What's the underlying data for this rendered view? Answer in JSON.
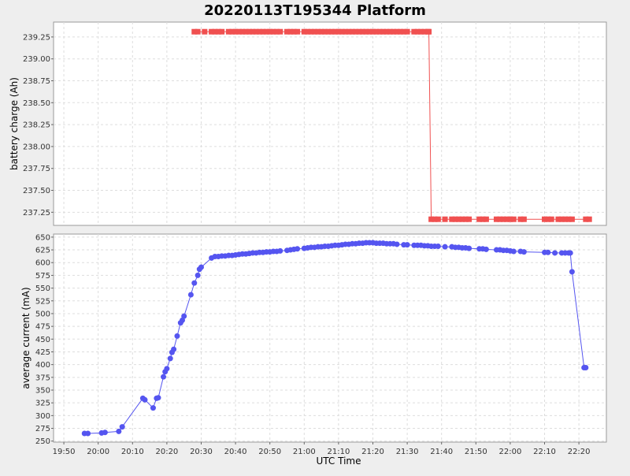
{
  "chart_data": {
    "type": "line",
    "title": "20220113T195344 Platform",
    "xlabel": "UTC Time",
    "x_ticks": [
      "19:50",
      "20:00",
      "20:10",
      "20:20",
      "20:30",
      "20:40",
      "20:50",
      "21:00",
      "21:10",
      "21:20",
      "21:30",
      "21:40",
      "21:50",
      "22:00",
      "22:10",
      "22:20"
    ],
    "xlim": [
      "19:47",
      "22:28"
    ],
    "grid": true,
    "colors": {
      "battery": "#f05050",
      "current": "#5555f0",
      "plot_bg": "#ffffff",
      "page_bg": "#eeeeee",
      "grid": "#dddddd"
    },
    "panels": [
      {
        "name": "battery",
        "ylabel": "battery charge (Ah)",
        "ylim": [
          237.1,
          239.42
        ],
        "y_ticks": [
          "239.25",
          "239.00",
          "238.75",
          "238.50",
          "238.25",
          "238.00",
          "237.75",
          "237.50",
          "237.25"
        ],
        "series": [
          {
            "marker": "square",
            "x": [
              "20:28",
              "20:29",
              "20:31",
              "20:33",
              "20:34",
              "20:35",
              "20:36",
              "20:38",
              "20:39",
              "20:40",
              "20:41",
              "20:42",
              "20:43",
              "20:44",
              "20:45",
              "20:46",
              "20:47",
              "20:48",
              "20:49",
              "20:50",
              "20:51",
              "20:52",
              "20:53",
              "20:55",
              "20:56",
              "20:57",
              "20:58",
              "21:00",
              "21:01",
              "21:02",
              "21:03",
              "21:04",
              "21:05",
              "21:06",
              "21:07",
              "21:08",
              "21:09",
              "21:10",
              "21:11",
              "21:12",
              "21:13",
              "21:14",
              "21:15",
              "21:16",
              "21:17",
              "21:18",
              "21:19",
              "21:20",
              "21:21",
              "21:22",
              "21:23",
              "21:24",
              "21:25",
              "21:26",
              "21:27",
              "21:28",
              "21:29",
              "21:30",
              "21:32",
              "21:33",
              "21:34",
              "21:35",
              "21:36",
              "21:36.3",
              "21:37",
              "21:38",
              "21:39",
              "21:41",
              "21:43",
              "21:44",
              "21:45",
              "21:46",
              "21:47",
              "21:48",
              "21:51",
              "21:52",
              "21:53",
              "21:56",
              "21:57",
              "21:58",
              "21:59",
              "22:00",
              "22:01",
              "22:03",
              "22:04",
              "22:10",
              "22:11",
              "22:12",
              "22:14",
              "22:15",
              "22:16",
              "22:17",
              "22:18",
              "22:22",
              "22:23"
            ],
            "y": [
              239.31,
              239.31,
              239.31,
              239.31,
              239.31,
              239.31,
              239.31,
              239.31,
              239.31,
              239.31,
              239.31,
              239.31,
              239.31,
              239.31,
              239.31,
              239.31,
              239.31,
              239.31,
              239.31,
              239.31,
              239.31,
              239.31,
              239.31,
              239.31,
              239.31,
              239.31,
              239.31,
              239.31,
              239.31,
              239.31,
              239.31,
              239.31,
              239.31,
              239.31,
              239.31,
              239.31,
              239.31,
              239.31,
              239.31,
              239.31,
              239.31,
              239.31,
              239.31,
              239.31,
              239.31,
              239.31,
              239.31,
              239.31,
              239.31,
              239.31,
              239.31,
              239.31,
              239.31,
              239.31,
              239.31,
              239.31,
              239.31,
              239.31,
              239.31,
              239.31,
              239.31,
              239.31,
              239.31,
              239.31,
              237.17,
              237.17,
              237.17,
              237.17,
              237.17,
              237.17,
              237.17,
              237.17,
              237.17,
              237.17,
              237.17,
              237.17,
              237.17,
              237.17,
              237.17,
              237.17,
              237.17,
              237.17,
              237.17,
              237.17,
              237.17,
              237.17,
              237.17,
              237.17,
              237.17,
              237.17,
              237.17,
              237.17,
              237.17,
              237.17,
              237.17
            ]
          }
        ]
      },
      {
        "name": "current",
        "ylabel": "average current (mA)",
        "ylim": [
          248,
          656
        ],
        "y_ticks": [
          "650",
          "625",
          "600",
          "575",
          "550",
          "525",
          "500",
          "475",
          "450",
          "425",
          "400",
          "375",
          "350",
          "325",
          "300",
          "275",
          "250"
        ],
        "series": [
          {
            "marker": "circle",
            "x": [
              "19:56",
              "19:57",
              "20:01",
              "20:02",
              "20:06",
              "20:07",
              "20:13",
              "20:13.6",
              "20:16",
              "20:17",
              "20:17.5",
              "20:19",
              "20:19.5",
              "20:20",
              "20:21",
              "20:21.5",
              "20:22",
              "20:23",
              "20:24",
              "20:24.5",
              "20:25",
              "20:27",
              "20:28",
              "20:29",
              "20:29.5",
              "20:30",
              "20:33",
              "20:34",
              "20:35",
              "20:36",
              "20:37",
              "20:38",
              "20:39",
              "20:40",
              "20:41",
              "20:42",
              "20:43",
              "20:44",
              "20:45",
              "20:46",
              "20:47",
              "20:48",
              "20:49",
              "20:50",
              "20:51",
              "20:52",
              "20:53",
              "20:55",
              "20:56",
              "20:57",
              "20:58",
              "21:00",
              "21:01",
              "21:02",
              "21:03",
              "21:04",
              "21:05",
              "21:06",
              "21:07",
              "21:08",
              "21:09",
              "21:10",
              "21:11",
              "21:12",
              "21:13",
              "21:14",
              "21:15",
              "21:16",
              "21:17",
              "21:18",
              "21:19",
              "21:20",
              "21:21",
              "21:22",
              "21:23",
              "21:24",
              "21:25",
              "21:26",
              "21:27",
              "21:29",
              "21:30",
              "21:32",
              "21:33",
              "21:34",
              "21:35",
              "21:36",
              "21:37",
              "21:38",
              "21:39",
              "21:41",
              "21:43",
              "21:44",
              "21:45",
              "21:46",
              "21:47",
              "21:48",
              "21:51",
              "21:52",
              "21:53",
              "21:56",
              "21:57",
              "21:58",
              "21:59",
              "22:00",
              "22:01",
              "22:03",
              "22:04",
              "22:10",
              "22:11",
              "22:13",
              "22:15",
              "22:16",
              "22:17",
              "22:17.5",
              "22:18",
              "22:21.5",
              "22:22"
            ],
            "y": [
              265,
              265,
              266,
              267,
              269,
              278,
              334,
              331,
              315,
              334,
              335,
              376,
              386,
              392,
              412,
              424,
              430,
              456,
              482,
              487,
              495,
              537,
              560,
              575,
              587,
              591,
              609,
              612,
              612,
              613,
              613,
              614,
              614,
              615,
              616,
              617,
              617,
              618,
              619,
              619,
              620,
              620,
              621,
              621,
              622,
              622,
              623,
              624,
              625,
              626,
              627,
              628,
              629,
              630,
              630,
              631,
              631,
              632,
              632,
              633,
              634,
              634,
              635,
              636,
              636,
              637,
              637,
              638,
              638,
              639,
              639,
              639,
              638,
              638,
              638,
              637,
              637,
              637,
              636,
              635,
              635,
              634,
              634,
              634,
              633,
              633,
              632,
              632,
              632,
              631,
              631,
              630,
              630,
              629,
              629,
              628,
              627,
              627,
              626,
              625,
              625,
              624,
              624,
              623,
              622,
              622,
              621,
              620,
              620,
              619,
              619,
              619,
              619,
              619,
              582,
              394,
              394
            ]
          }
        ]
      }
    ]
  }
}
